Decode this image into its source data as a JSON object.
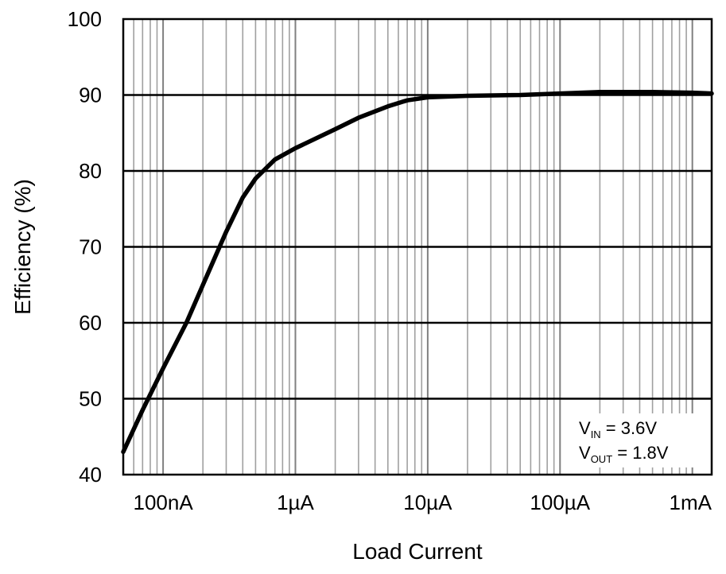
{
  "chart_data": {
    "type": "line",
    "xlabel": "Load Current",
    "ylabel": "Efficiency (%)",
    "x_scale": "log",
    "x_unit": "A",
    "xlim": [
      5e-08,
      0.0014
    ],
    "ylim": [
      40,
      100
    ],
    "x_tick_values": [
      1e-07,
      1e-06,
      1e-05,
      0.0001,
      0.001
    ],
    "x_tick_labels": [
      "100nA",
      "1µA",
      "10µA",
      "100µA",
      "1mA"
    ],
    "y_tick_values": [
      40,
      50,
      60,
      70,
      80,
      90,
      100
    ],
    "y_tick_labels": [
      "40",
      "50",
      "60",
      "70",
      "80",
      "90",
      "100"
    ],
    "grid": true,
    "annotation": {
      "vin_main": "V",
      "vin_sub": "IN",
      "vin_value": " = 3.6V",
      "vout_main": "V",
      "vout_sub": "OUT",
      "vout_value": " = 1.8V",
      "placement": "bottom-right"
    },
    "series": [
      {
        "color": "#000000",
        "x": [
          5e-08,
          7e-08,
          1e-07,
          1.5e-07,
          2e-07,
          3e-07,
          4e-07,
          5e-07,
          7e-07,
          1e-06,
          2e-06,
          3e-06,
          5e-06,
          7e-06,
          1e-05,
          2e-05,
          5e-05,
          0.0001,
          0.0002,
          0.0005,
          0.001,
          0.0014
        ],
        "y": [
          43,
          48.5,
          54,
          60,
          65,
          72,
          76.5,
          79,
          81.5,
          83,
          85.5,
          87,
          88.5,
          89.3,
          89.7,
          89.9,
          90,
          90.2,
          90.4,
          90.4,
          90.3,
          90.2
        ]
      }
    ]
  }
}
